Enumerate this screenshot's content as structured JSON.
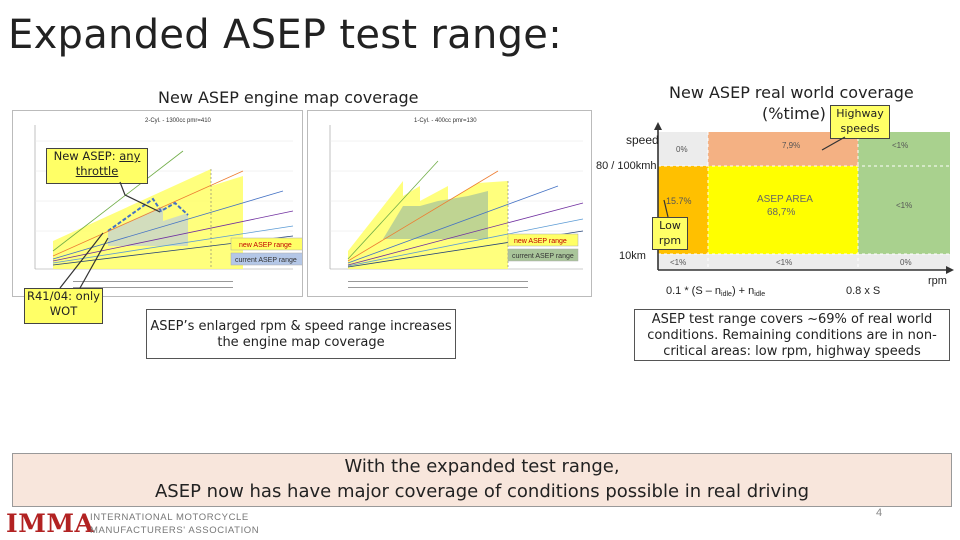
{
  "slide": {
    "title": "Expanded ASEP test range:",
    "left_heading": "New ASEP engine map coverage",
    "right_heading_line1": "New ASEP real world coverage",
    "right_heading_line2": "(%time)",
    "highway_label_line1": "Highway",
    "highway_label_line2": "speeds",
    "low_rpm_line1": "Low",
    "low_rpm_line2": "rpm",
    "new_asep_prefix": "New ASEP:",
    "new_asep_any": "any",
    "new_asep_throttle": "throttle",
    "r41_line1": "R41/04: only",
    "r41_line2": "WOT",
    "left_caption_line1": "ASEP’s enlarged rpm & speed range increases",
    "left_caption_line2": "the engine map coverage",
    "right_caption_line1": "ASEP test range covers ~69% of real world",
    "right_caption_line2": "conditions. Remaining conditions are in non-",
    "right_caption_line3": "critical areas: low rpm, highway speeds",
    "bottom_line1": "With the expanded test range,",
    "bottom_line2": "ASEP now has have major coverage of conditions possible in real driving",
    "page_number": "4",
    "logo_main": "IMMA",
    "logo_line1": "INTERNATIONAL MOTORCYCLE",
    "logo_line2": "MANUFACTURERS' ASSOCIATION"
  },
  "engine_map_1": {
    "title": "2-Cyl. - 1300cc pmr=410",
    "legend_new": "new ASEP range",
    "legend_current": "current ASEP range"
  },
  "engine_map_2": {
    "title": "1-Cyl. - 400cc pmr=130",
    "legend_new": "new ASEP range",
    "legend_current": "current ASEP range"
  },
  "coverage_diagram": {
    "y_axis_label": "speed",
    "y_tick_high": "80 / 100kmh",
    "y_tick_low": "10km",
    "x_axis_label": "rpm",
    "x_tick_left": "0.1 * (S – n",
    "x_tick_left_sub1": "idle",
    "x_tick_left_mid": ") + n",
    "x_tick_left_sub2": "idle",
    "x_tick_right": "0.8 x S",
    "cells": {
      "top_left": "0%",
      "top_mid": "7,9%",
      "top_right": "<1%",
      "mid_left": "15.7%",
      "center_title": "ASEP AREA",
      "center_value": "68,7%",
      "mid_right": "<1%",
      "bot_left": "<1%",
      "bot_mid": "<1%",
      "bot_right": "0%"
    },
    "colors": {
      "orange_light": "#f4b183",
      "orange": "#ffc000",
      "yellow": "#ffff00",
      "green": "#a9d18e",
      "grey": "#ececec"
    }
  }
}
